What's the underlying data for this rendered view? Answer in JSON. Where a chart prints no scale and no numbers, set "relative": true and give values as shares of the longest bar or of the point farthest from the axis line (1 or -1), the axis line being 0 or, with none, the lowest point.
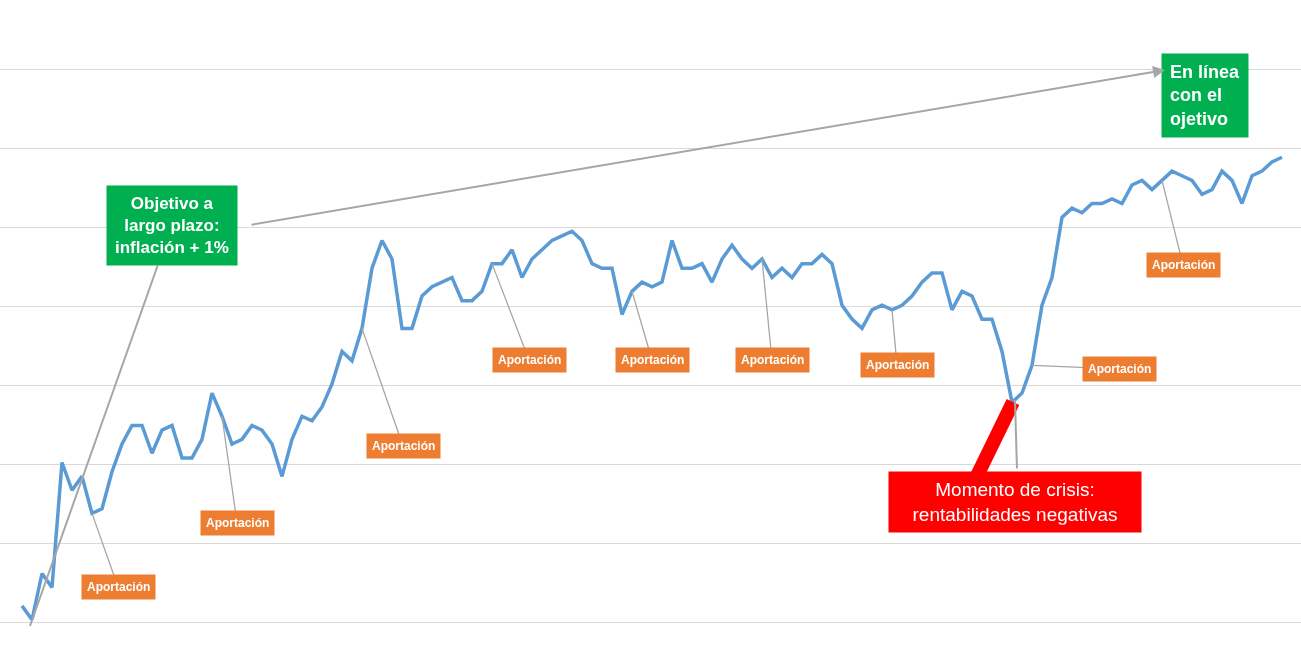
{
  "chart_data": {
    "type": "line",
    "relative": true,
    "grid": "y",
    "marker": "none",
    "line_style": "solid",
    "categories": [
      null,
      null,
      null,
      null,
      null,
      null,
      null,
      null,
      null,
      null,
      null,
      null,
      null,
      null,
      null,
      null,
      null,
      null,
      null,
      null,
      null,
      null,
      null,
      null,
      null,
      null,
      null,
      null,
      null,
      null,
      null,
      null,
      null,
      null,
      null,
      null,
      null,
      null,
      null,
      null,
      null,
      null,
      null,
      null,
      null,
      null,
      null,
      null,
      null,
      null,
      null,
      null,
      null,
      null,
      null,
      null,
      null,
      null,
      null,
      null,
      null,
      null,
      null,
      null,
      null,
      null,
      null,
      null,
      null,
      null,
      null,
      null,
      null,
      null,
      null,
      null,
      null,
      null,
      null,
      null,
      null,
      null,
      null,
      null,
      null,
      null,
      null,
      null,
      null,
      null,
      null,
      null,
      null,
      null,
      null,
      null,
      null,
      null,
      null,
      null,
      null,
      null,
      null,
      null,
      null,
      null,
      null,
      null,
      null,
      null,
      null,
      null,
      null,
      null,
      null,
      null,
      null,
      null,
      null,
      null,
      null,
      null,
      null,
      null,
      null,
      null,
      null
    ],
    "series": [
      {
        "color": "#5b9bd5",
        "values": [
          0.03,
          0,
          0.1,
          0.07,
          0.34,
          0.28,
          0.31,
          0.23,
          0.24,
          0.32,
          0.38,
          0.42,
          0.42,
          0.36,
          0.41,
          0.42,
          0.35,
          0.35,
          0.39,
          0.49,
          0.44,
          0.38,
          0.39,
          0.42,
          0.41,
          0.38,
          0.31,
          0.39,
          0.44,
          0.43,
          0.46,
          0.51,
          0.58,
          0.56,
          0.63,
          0.76,
          0.82,
          0.78,
          0.63,
          0.63,
          0.7,
          0.72,
          0.73,
          0.74,
          0.69,
          0.69,
          0.71,
          0.77,
          0.77,
          0.8,
          0.74,
          0.78,
          0.8,
          0.82,
          0.83,
          0.84,
          0.82,
          0.77,
          0.76,
          0.76,
          0.66,
          0.71,
          0.73,
          0.72,
          0.73,
          0.82,
          0.76,
          0.76,
          0.77,
          0.73,
          0.78,
          0.81,
          0.78,
          0.76,
          0.78,
          0.74,
          0.76,
          0.74,
          0.77,
          0.77,
          0.79,
          0.77,
          0.68,
          0.65,
          0.63,
          0.67,
          0.68,
          0.67,
          0.68,
          0.7,
          0.73,
          0.75,
          0.75,
          0.67,
          0.71,
          0.7,
          0.65,
          0.65,
          0.58,
          0.47,
          0.49,
          0.55,
          0.68,
          0.74,
          0.87,
          0.89,
          0.88,
          0.9,
          0.9,
          0.91,
          0.9,
          0.94,
          0.95,
          0.93,
          0.95,
          0.97,
          0.96,
          0.95,
          0.92,
          0.93,
          0.97,
          0.95,
          0.9,
          0.96,
          0.97,
          0.99,
          1.0
        ]
      }
    ],
    "annotations": [
      "Objetivo a largo plazo: inflación + 1%",
      "En línea con el ojetivo",
      "Aportación",
      "Aportación",
      "Aportación",
      "Aportación",
      "Aportación",
      "Aportación",
      "Aportación",
      "Aportación",
      "Aportación",
      "Momento de crisis: rentabilidades negativas"
    ]
  }
}
